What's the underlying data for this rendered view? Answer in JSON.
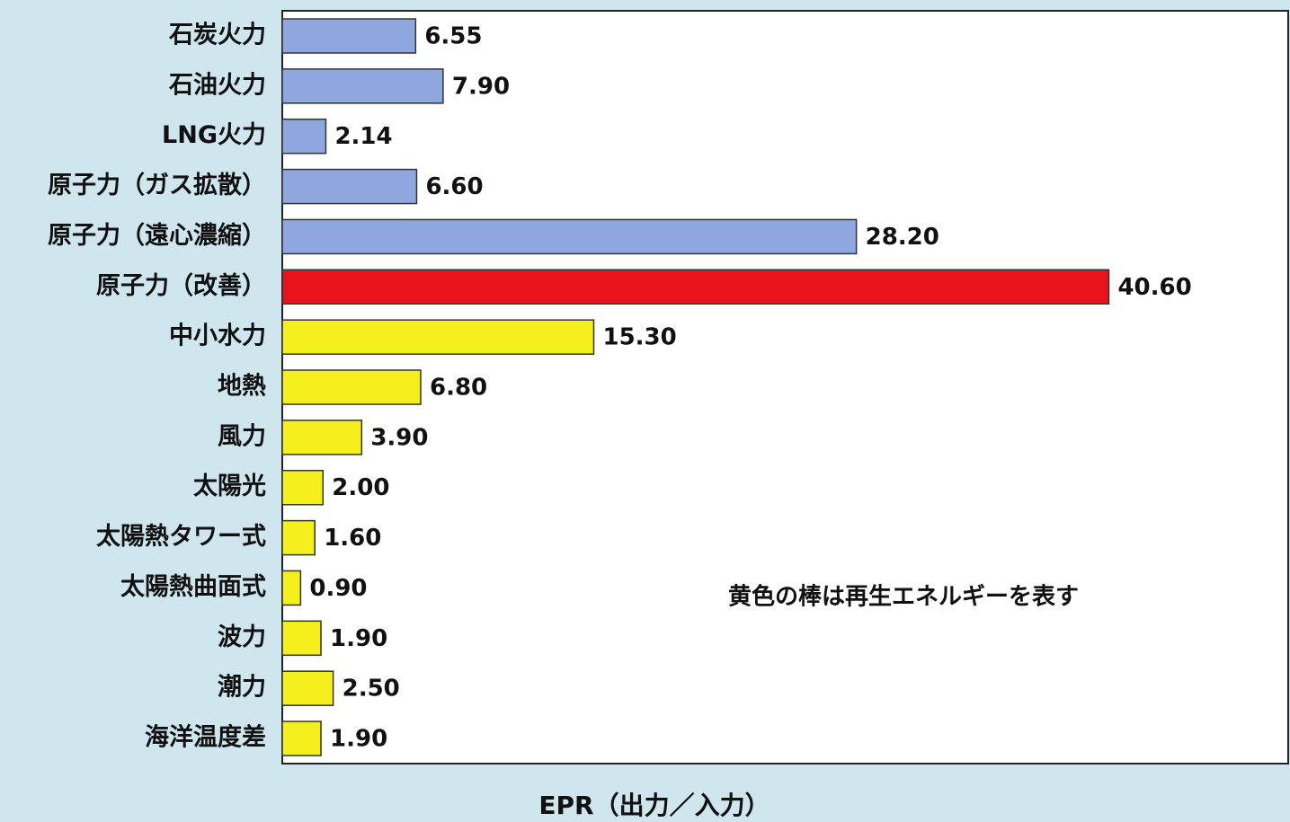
{
  "chart_data": {
    "type": "bar",
    "orientation": "horizontal",
    "x_label": "EPR（出力／入力）",
    "annotation": "黄色の棒は再生エネルギーを表す",
    "categories": [
      "石炭火力",
      "石油火力",
      "LNG火力",
      "原子力（ガス拡散）",
      "原子力（遠心濃縮）",
      "原子力（改善）",
      "中小水力",
      "地熱",
      "風力",
      "太陽光",
      "太陽熱タワー式",
      "太陽熱曲面式",
      "波力",
      "潮力",
      "海洋温度差"
    ],
    "values": [
      6.55,
      7.9,
      2.14,
      6.6,
      28.2,
      40.6,
      15.3,
      6.8,
      3.9,
      2.0,
      1.6,
      0.9,
      1.9,
      2.5,
      1.9
    ],
    "value_labels": [
      "6.55",
      "7.90",
      "2.14",
      "6.60",
      "28.20",
      "40.60",
      "15.30",
      "6.80",
      "3.90",
      "2.00",
      "1.60",
      "0.90",
      "1.90",
      "2.50",
      "1.90"
    ],
    "colors": [
      "#8ea7df",
      "#8ea7df",
      "#8ea7df",
      "#8ea7df",
      "#8ea7df",
      "#e8131b",
      "#f6ef1e",
      "#f6ef1e",
      "#f6ef1e",
      "#f6ef1e",
      "#f6ef1e",
      "#f6ef1e",
      "#f6ef1e",
      "#f6ef1e",
      "#f6ef1e"
    ],
    "xlim": [
      0,
      49.5
    ]
  }
}
